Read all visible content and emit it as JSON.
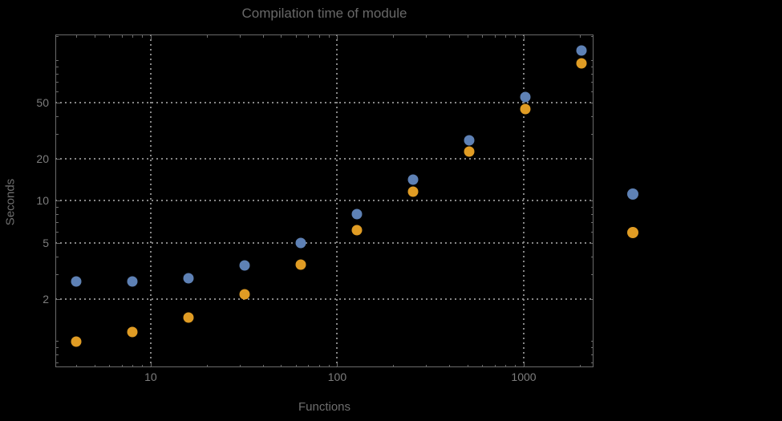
{
  "chart_data": {
    "type": "scatter",
    "title": "Compilation time of module",
    "xlabel": "Functions",
    "ylabel": "Seconds",
    "x_scale": "log",
    "y_scale": "log",
    "grid": "dotted",
    "x_range": [
      3.08,
      2367
    ],
    "y_range": [
      0.65,
      153
    ],
    "x": [
      4,
      8,
      16,
      32,
      64,
      128,
      256,
      512,
      1024,
      2048
    ],
    "series": [
      {
        "name": "series-1-blue",
        "color": "#5e81b5",
        "values": [
          2.65,
          2.67,
          2.8,
          3.45,
          5.0,
          8.0,
          14.2,
          26.8,
          55,
          118
        ]
      },
      {
        "name": "series-2-orange",
        "color": "#e09c24",
        "values": [
          0.99,
          1.16,
          1.47,
          2.15,
          3.5,
          6.2,
          11.6,
          22.3,
          45,
          95
        ]
      }
    ],
    "x_ticks": [
      {
        "v": 10,
        "label": "10"
      },
      {
        "v": 100,
        "label": "100"
      },
      {
        "v": 1000,
        "label": "1000"
      }
    ],
    "x_minor_ticks": [
      4,
      5,
      6,
      7,
      8,
      9,
      20,
      30,
      40,
      50,
      60,
      70,
      80,
      90,
      200,
      300,
      400,
      500,
      600,
      700,
      800,
      900,
      2000
    ],
    "y_ticks": [
      {
        "v": 2,
        "label": "2"
      },
      {
        "v": 5,
        "label": "5"
      },
      {
        "v": 10,
        "label": "10"
      },
      {
        "v": 20,
        "label": "20"
      },
      {
        "v": 50,
        "label": "50"
      }
    ],
    "y_minor_ticks": [
      0.7,
      0.8,
      0.9,
      1,
      3,
      4,
      6,
      7,
      8,
      9,
      30,
      40,
      60,
      70,
      80,
      90,
      100,
      150
    ],
    "legend": {
      "position": "right-of-plot",
      "items": [
        {
          "marker_color": "#5e81b5",
          "label": ""
        },
        {
          "marker_color": "#e09c24",
          "label": ""
        }
      ]
    },
    "palette": {
      "background": "#000000",
      "frame": "#6a6a6a",
      "grid": "#858585",
      "title_text": "#686868",
      "axis_label_text": "#6e6e6e",
      "tick_text": "#7d7d7d"
    }
  }
}
